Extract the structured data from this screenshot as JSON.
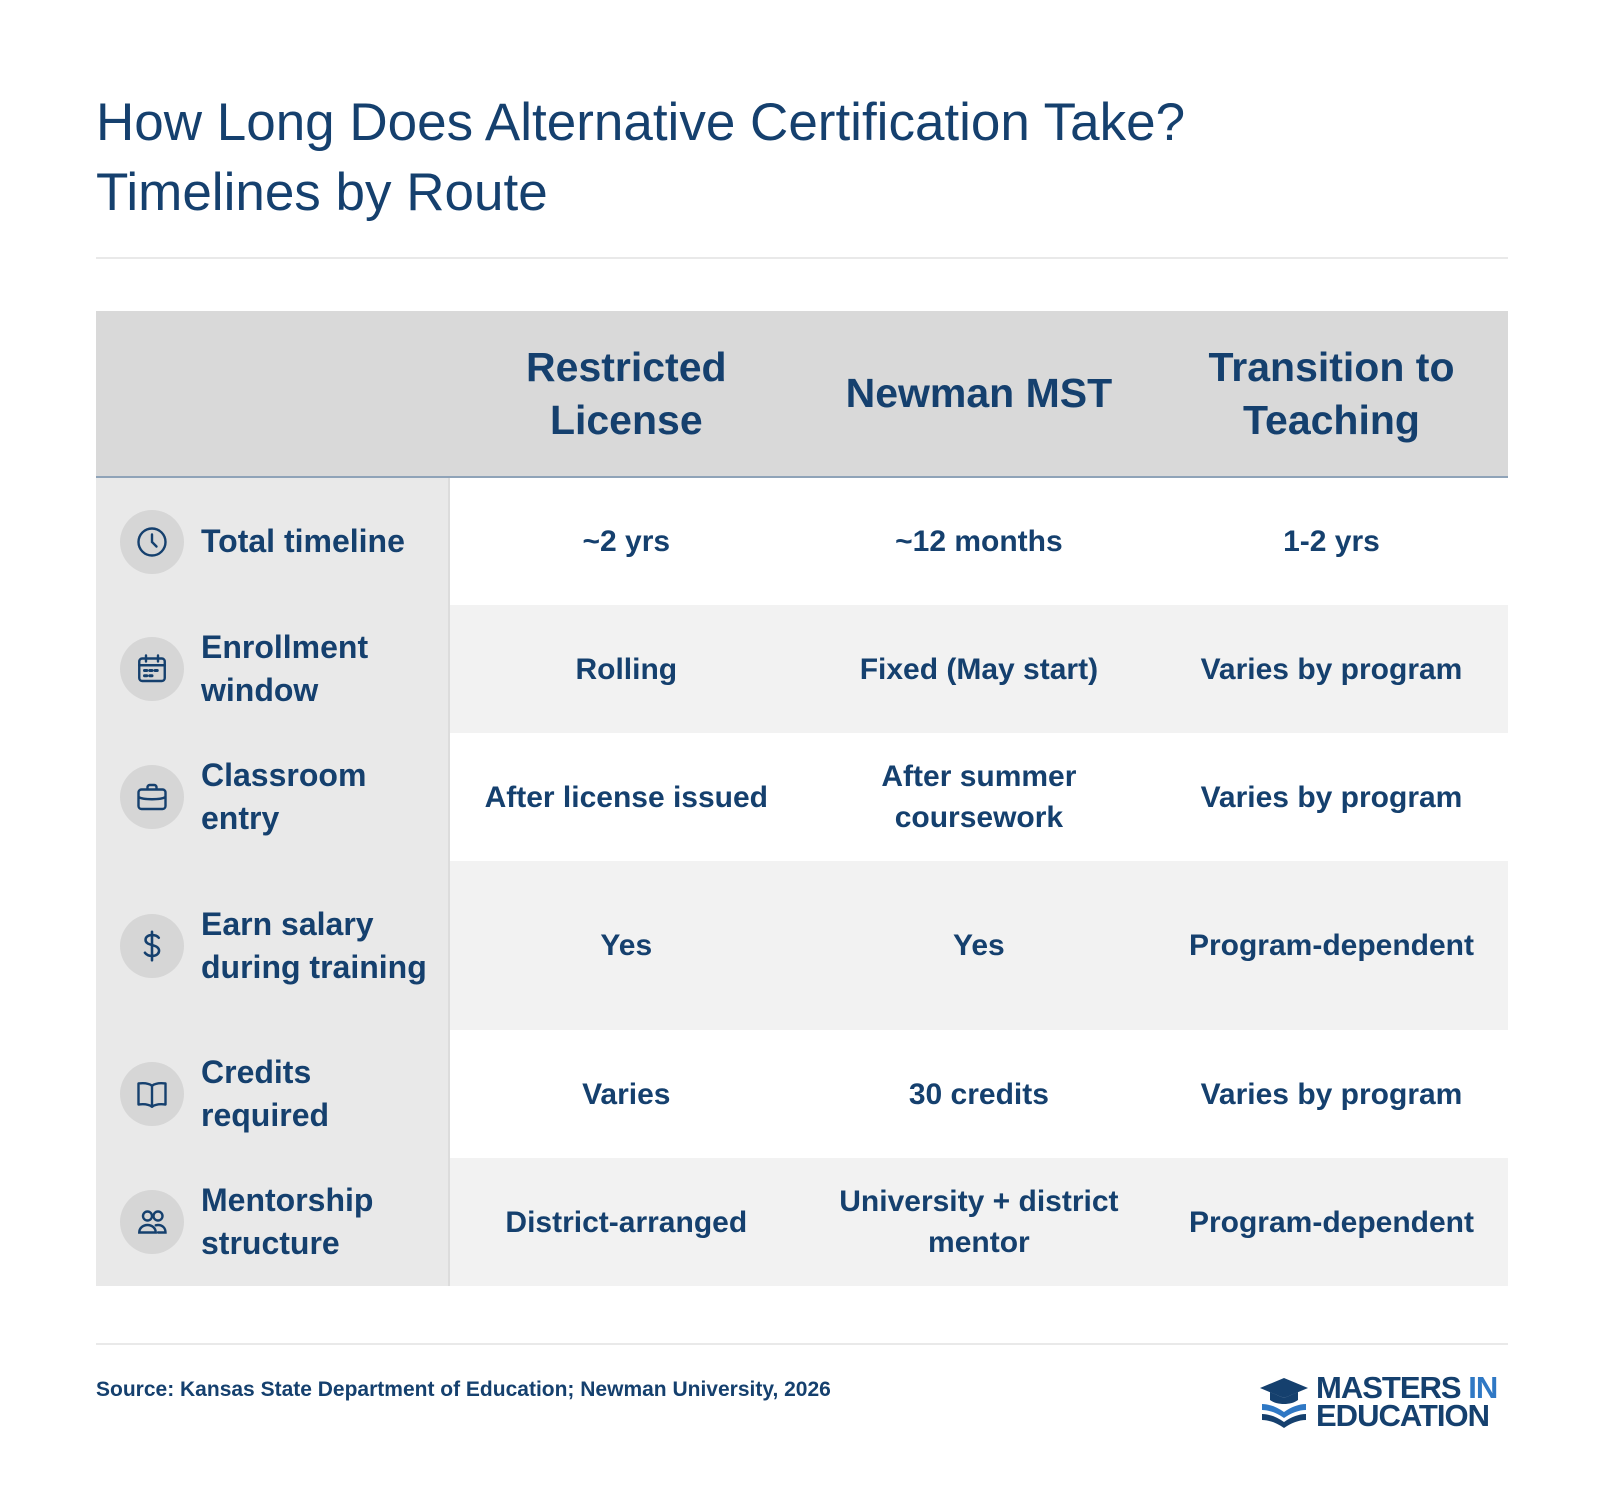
{
  "title": {
    "line1": "How Long Does Alternative Certification Take?",
    "line2": "Timelines by Route"
  },
  "table": {
    "columns": [
      "Restricted License",
      "Newman MST",
      "Transition to Teaching"
    ],
    "rows": [
      {
        "label": "Total timeline",
        "icon": "clock-icon",
        "values": [
          "~2 yrs",
          "~12 months",
          "1-2 yrs"
        ]
      },
      {
        "label": "Enrollment window",
        "icon": "calendar-icon",
        "values": [
          "Rolling",
          "Fixed (May start)",
          "Varies by program"
        ]
      },
      {
        "label": "Classroom entry",
        "icon": "briefcase-icon",
        "values": [
          "After license issued",
          "After summer coursework",
          "Varies by program"
        ]
      },
      {
        "label": "Earn salary during training",
        "icon": "dollar-icon",
        "values": [
          "Yes",
          "Yes",
          "Program-dependent"
        ]
      },
      {
        "label": "Credits required",
        "icon": "book-icon",
        "values": [
          "Varies",
          "30 credits",
          "Varies by program"
        ]
      },
      {
        "label": "Mentorship structure",
        "icon": "people-icon",
        "values": [
          "District-arranged",
          "University + district mentor",
          "Program-dependent"
        ]
      }
    ]
  },
  "footer": {
    "source": "Source: Kansas State Department of Education; Newman University, 2026",
    "logo": {
      "line1_a": "MASTERS",
      "line1_b": "IN",
      "line2": "EDUCATION"
    }
  },
  "colors": {
    "navy": "#15406e",
    "header_bg": "#d9d9d9",
    "label_bg": "#e9e9e9",
    "alt_row_bg": "#f2f2f2",
    "logo_accent": "#2f78c4"
  }
}
